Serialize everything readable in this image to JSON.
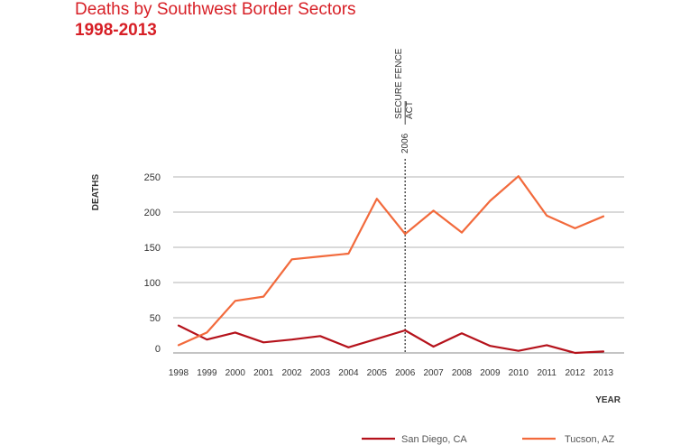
{
  "header": {
    "title": "Deaths by Southwest Border Sectors",
    "subtitle": "1998-2013"
  },
  "chart_data": {
    "type": "line",
    "title": "Deaths by Southwest Border Sectors",
    "subtitle": "1998-2013",
    "xlabel": "YEAR",
    "ylabel": "DEATHS",
    "categories": [
      "1998",
      "1999",
      "2000",
      "2001",
      "2002",
      "2003",
      "2004",
      "2005",
      "2006",
      "2007",
      "2008",
      "2009",
      "2010",
      "2011",
      "2012",
      "2013"
    ],
    "yticks": [
      0,
      50,
      100,
      150,
      200,
      250
    ],
    "ylim": [
      0,
      250
    ],
    "grid": true,
    "legend_position": "bottom",
    "series": [
      {
        "name": "San Diego, CA",
        "color": "#b5121b",
        "values": [
          39,
          19,
          29,
          15,
          19,
          24,
          8,
          20,
          32,
          9,
          28,
          10,
          3,
          11,
          0,
          2
        ]
      },
      {
        "name": "Tucson, AZ",
        "color": "#f26a3c",
        "values": [
          11,
          29,
          74,
          80,
          133,
          137,
          141,
          219,
          169,
          202,
          171,
          216,
          251,
          195,
          177,
          194
        ]
      }
    ],
    "annotation": {
      "year_label": "2006",
      "text_line1": "SECURE FENCE",
      "text_line2": "ACT",
      "at_category": "2006"
    }
  }
}
